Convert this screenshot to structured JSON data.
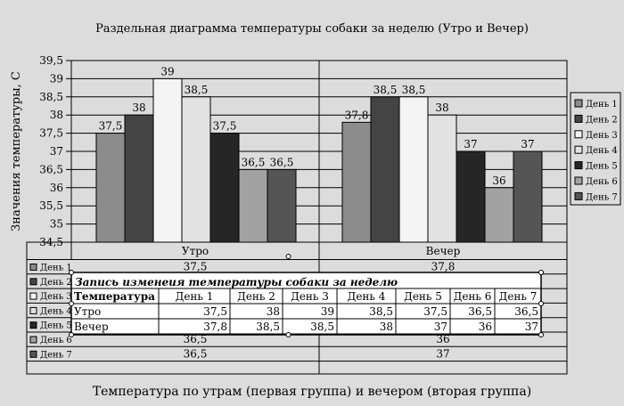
{
  "chart_data": {
    "type": "bar",
    "title": "Раздельная диаграмма температуры собаки за неделю (Утро и Вечер)",
    "xlabel": "Температура по утрам (первая группа) и вечером (вторая группа)",
    "ylabel": "Значения температуры, С",
    "ylim": [
      34.5,
      39.5
    ],
    "y_ticks": [
      "39,5",
      "39",
      "38,5",
      "38",
      "37,5",
      "37",
      "36,5",
      "36",
      "35,5",
      "35",
      "34,5"
    ],
    "grid": true,
    "legend_position": "right",
    "categories": [
      "Утро",
      "Вечер"
    ],
    "series": [
      {
        "name": "День 1",
        "values": [
          37.5,
          37.8
        ],
        "labels": [
          "37,5",
          "37,8"
        ],
        "color": "#8c8c8c"
      },
      {
        "name": "День 2",
        "values": [
          38,
          38.5
        ],
        "labels": [
          "38",
          "38,5"
        ],
        "color": "#444444"
      },
      {
        "name": "День 3",
        "values": [
          39,
          38.5
        ],
        "labels": [
          "39",
          "38,5"
        ],
        "color": "#f4f4f4"
      },
      {
        "name": "День 4",
        "values": [
          38.5,
          38
        ],
        "labels": [
          "38,5",
          "38"
        ],
        "color": "#e2e2e2"
      },
      {
        "name": "День 5",
        "values": [
          37.5,
          37
        ],
        "labels": [
          "37,5",
          "37"
        ],
        "color": "#262626"
      },
      {
        "name": "День 6",
        "values": [
          36.5,
          36
        ],
        "labels": [
          "36,5",
          "36"
        ],
        "color": "#a2a2a2"
      },
      {
        "name": "День 7",
        "values": [
          36.5,
          37
        ],
        "labels": [
          "36,5",
          "37"
        ],
        "color": "#555555"
      }
    ]
  },
  "data_table": {
    "rows": [
      {
        "label": "День 1",
        "morning": "37,5",
        "evening": "37,8"
      },
      {
        "label": "День 2",
        "morning": "",
        "evening": ""
      },
      {
        "label": "День 3",
        "morning": "",
        "evening": ""
      },
      {
        "label": "День 4",
        "morning": "",
        "evening": ""
      },
      {
        "label": "День 5",
        "morning": "",
        "evening": ""
      },
      {
        "label": "День 6",
        "morning": "36,5",
        "evening": "36"
      },
      {
        "label": "День 7",
        "morning": "36,5",
        "evening": "37"
      }
    ]
  },
  "embedded_table": {
    "title": "Запись изменеия температуры собаки за неделю",
    "header": [
      "Температура",
      "День 1",
      "День 2",
      "День 3",
      "День 4",
      "День 5",
      "День 6",
      "День 7"
    ],
    "rows": [
      [
        "Утро",
        "37,5",
        "38",
        "39",
        "38,5",
        "37,5",
        "36,5",
        "36,5"
      ],
      [
        "Вечер",
        "37,8",
        "38,5",
        "38,5",
        "38",
        "37",
        "36",
        "37"
      ]
    ]
  }
}
